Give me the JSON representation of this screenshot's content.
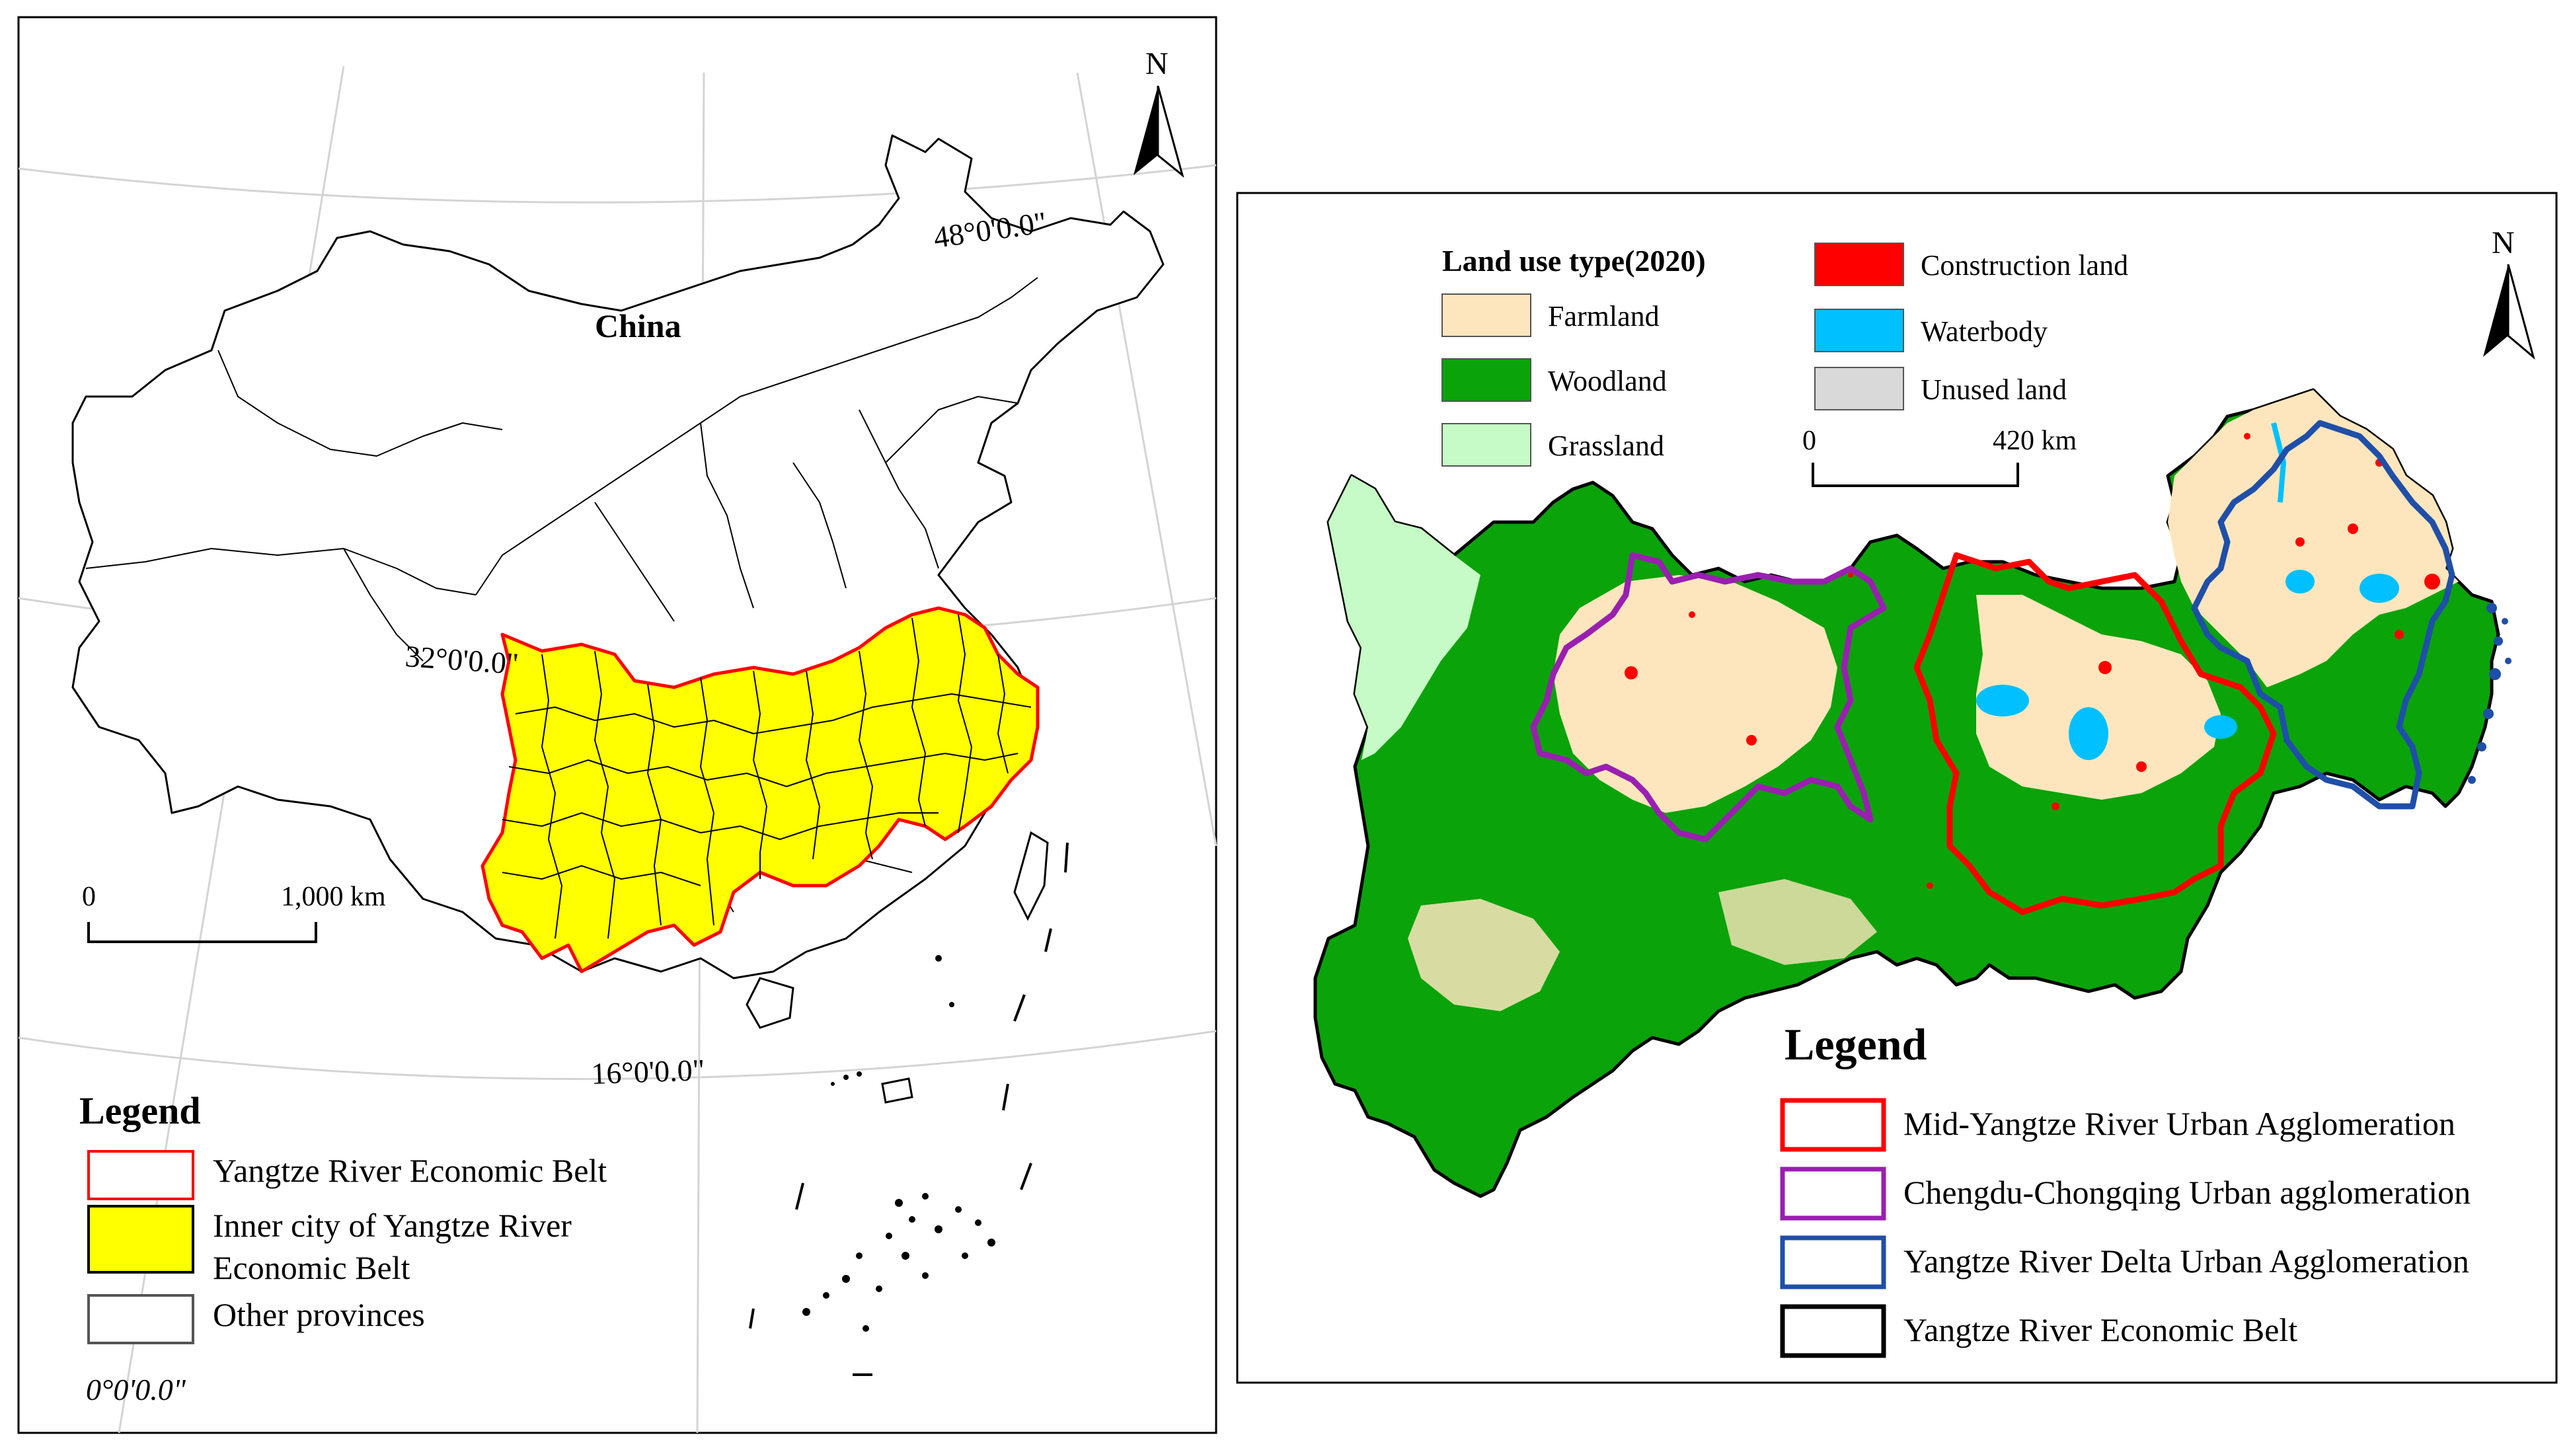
{
  "left_map": {
    "country_label": "China",
    "north_label": "N",
    "graticule_labels": [
      "48°0'0.0\"",
      "32°0'0.0\"",
      "16°0'0.0\"",
      "0°0'0.0\""
    ],
    "scale": {
      "start": "0",
      "end": "1,000 km"
    },
    "legend": {
      "title": "Legend",
      "items": [
        {
          "label_lines": [
            "Yangtze River Economic Belt"
          ],
          "fill": "#ffffff",
          "stroke": "#ff0000"
        },
        {
          "label_lines": [
            "Inner city of Yangtze River",
            "Economic Belt"
          ],
          "fill": "#ffff00",
          "stroke": "#000000"
        },
        {
          "label_lines": [
            "Other provinces"
          ],
          "fill": "#ffffff",
          "stroke": "#555555"
        }
      ]
    }
  },
  "right_map": {
    "north_label": "N",
    "landuse_title": "Land use type(2020)",
    "landuse_items": [
      {
        "label": "Farmland",
        "color": "#fde6bd"
      },
      {
        "label": "Woodland",
        "color": "#0aa30a"
      },
      {
        "label": "Grassland",
        "color": "#c6fac6"
      },
      {
        "label": "Construction land",
        "color": "#ff0000"
      },
      {
        "label": "Waterbody",
        "color": "#00c0ff"
      },
      {
        "label": "Unused land",
        "color": "#d9d9d9"
      }
    ],
    "scale": {
      "start": "0",
      "end": "420 km"
    },
    "legend": {
      "title": "Legend",
      "items": [
        {
          "label": "Mid-Yangtze River Urban Agglomeration",
          "color": "#ff0000"
        },
        {
          "label": "Chengdu-Chongqing Urban agglomeration",
          "color": "#9a1fb0"
        },
        {
          "label": "Yangtze River Delta Urban Agglomeration",
          "color": "#1f4fa8"
        },
        {
          "label": "Yangtze River Economic Belt",
          "color": "#000000"
        }
      ]
    }
  }
}
